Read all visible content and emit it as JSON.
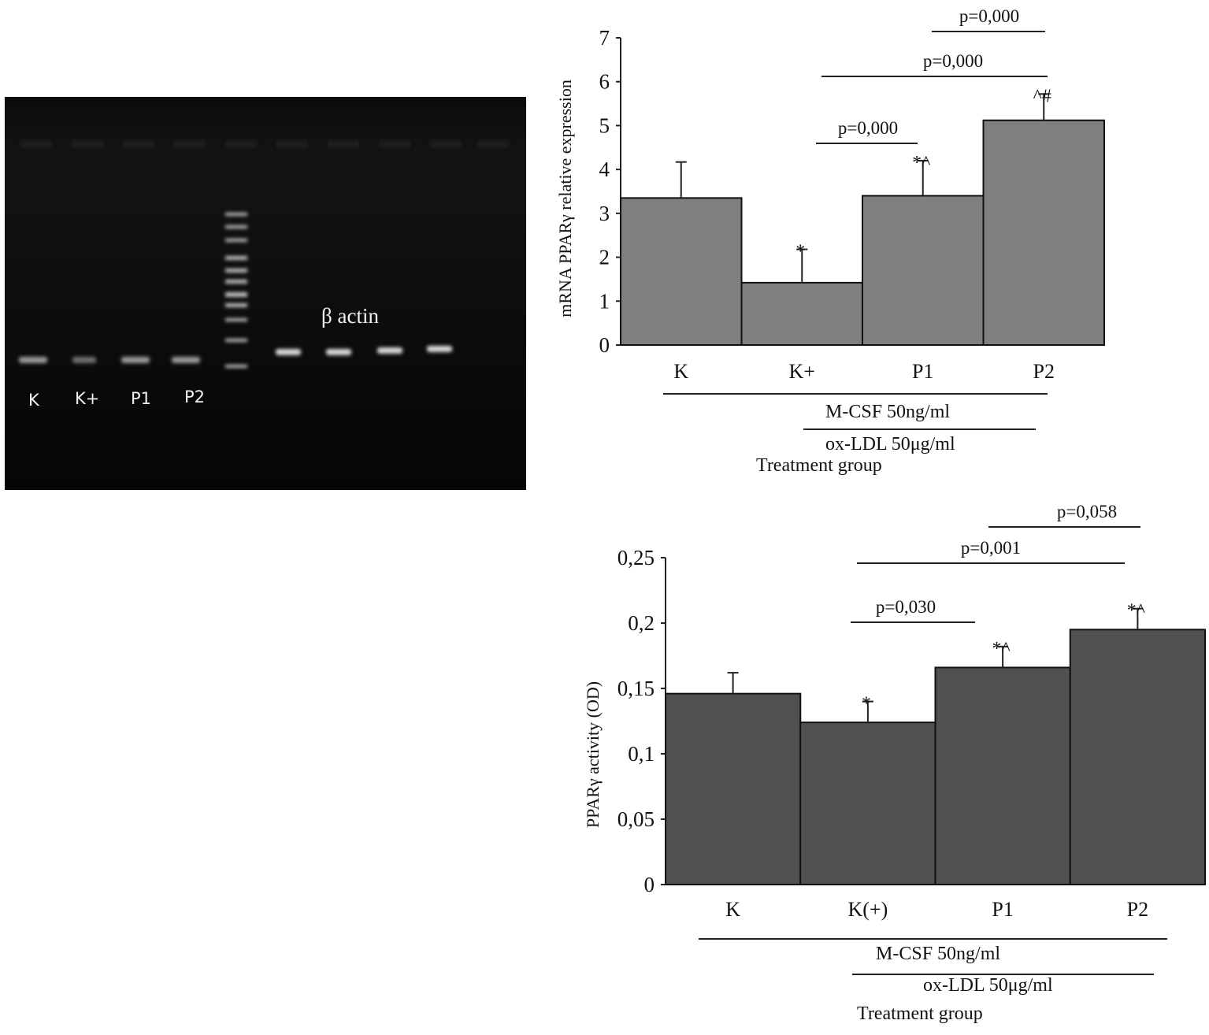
{
  "gel": {
    "lane_labels": [
      "K",
      "K+",
      "P1",
      "P2"
    ],
    "band_label": "β actin"
  },
  "chart_data": [
    {
      "type": "bar",
      "ylabel": "mRNA PPARγ relative expression",
      "xlabel": "Treatment group",
      "categories": [
        "K",
        "K+",
        "P1",
        "P2"
      ],
      "values": [
        3.35,
        1.42,
        3.4,
        5.12
      ],
      "errors": [
        0.82,
        0.76,
        0.8,
        0.6
      ],
      "significance": [
        "",
        "*",
        "*^",
        "^#"
      ],
      "ylim": [
        0,
        7
      ],
      "yticks": [
        0,
        1,
        2,
        3,
        4,
        5,
        6,
        7
      ],
      "ytick_labels": [
        "0",
        "1",
        "2",
        "3",
        "4",
        "5",
        "6",
        "7"
      ],
      "treatments": [
        "M-CSF 50ng/ml",
        "ox-LDL 50μg/ml"
      ],
      "pvalues": [
        {
          "from": "K+",
          "to": "P1",
          "label": "p=0,000"
        },
        {
          "from": "K+",
          "to": "P2",
          "label": "p=0,000"
        },
        {
          "from": "P1",
          "to": "P2",
          "label": "p=0,000"
        }
      ],
      "bar_color": "#7f7f7f",
      "grid": false
    },
    {
      "type": "bar",
      "ylabel": "PPARγ activity (OD)",
      "xlabel": "Treatment group",
      "categories": [
        "K",
        "K(+)",
        "P1",
        "P2"
      ],
      "values": [
        0.146,
        0.124,
        0.166,
        0.195
      ],
      "errors": [
        0.016,
        0.016,
        0.016,
        0.016
      ],
      "significance": [
        "",
        "*",
        "*^",
        "*^"
      ],
      "ylim": [
        0,
        0.25
      ],
      "yticks": [
        0,
        0.05,
        0.1,
        0.15,
        0.2,
        0.25
      ],
      "ytick_labels": [
        "0",
        "0,05",
        "0,1",
        "0,15",
        "0,2",
        "0,25"
      ],
      "treatments": [
        "M-CSF 50ng/ml",
        "ox-LDL 50μg/ml"
      ],
      "pvalues": [
        {
          "from": "K(+)",
          "to": "P1",
          "label": "p=0,030"
        },
        {
          "from": "K(+)",
          "to": "P2",
          "label": "p=0,001"
        },
        {
          "from": "P1",
          "to": "P2",
          "label": "p=0,058"
        }
      ],
      "bar_color": "#505050",
      "grid": false
    }
  ]
}
